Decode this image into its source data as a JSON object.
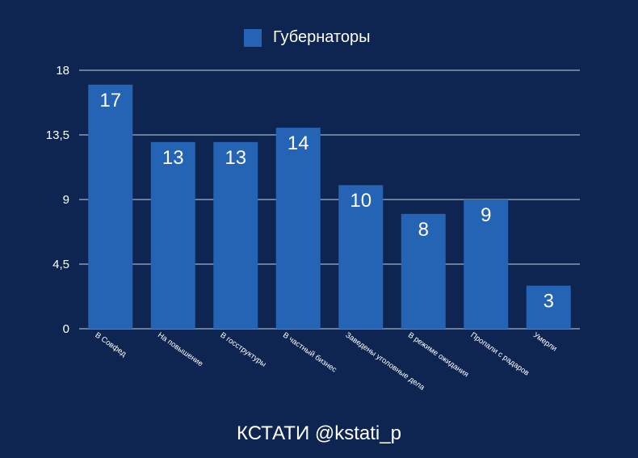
{
  "chart_data": {
    "type": "bar",
    "categories": [
      "В Совфед",
      "На повышение",
      "В госструктуры",
      "В частный бизнес",
      "Заведены уголовные дела",
      "В режиме ожидания",
      "Пропали с радаров",
      "Умерли"
    ],
    "series": [
      {
        "name": "Губернаторы",
        "values": [
          17,
          13,
          13,
          14,
          10,
          8,
          9,
          3
        ]
      }
    ],
    "ylim": [
      0,
      18
    ],
    "yticks": [
      "0",
      "4,5",
      "9",
      "13,5",
      "18"
    ],
    "ytick_values": [
      0,
      4.5,
      9,
      13.5,
      18
    ],
    "data_labels": [
      "17",
      "13",
      "13",
      "14",
      "10",
      "8",
      "9",
      "3"
    ],
    "grid": true,
    "legend_position": "top-center"
  },
  "colors": {
    "background": "#0d2550",
    "bar": "#2563b5",
    "grid": "#c9d3e6",
    "text": "#ffffff"
  },
  "footer": {
    "text": "КСТАТИ @kstati_p"
  }
}
